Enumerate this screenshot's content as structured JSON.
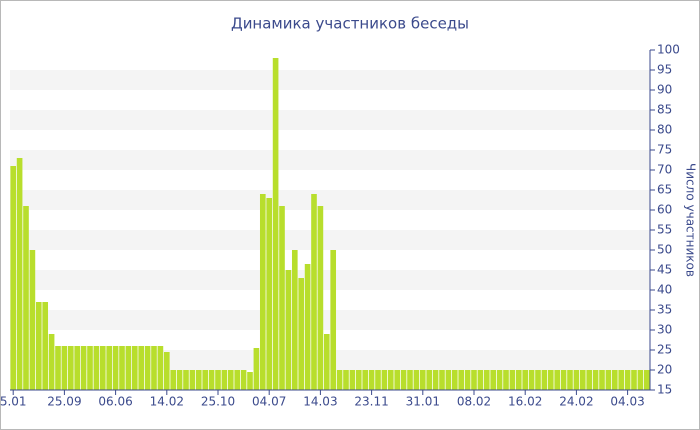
{
  "chart_data": {
    "type": "bar",
    "title": "Динамика участников беседы",
    "y_label": "Число участников",
    "categories": [
      "5.01",
      null,
      null,
      null,
      null,
      null,
      null,
      null,
      "25.09",
      null,
      null,
      null,
      null,
      null,
      null,
      null,
      "06.06",
      null,
      null,
      null,
      null,
      null,
      null,
      null,
      "14.02",
      null,
      null,
      null,
      null,
      null,
      null,
      null,
      "25.10",
      null,
      null,
      null,
      null,
      null,
      null,
      null,
      "04.07",
      null,
      null,
      null,
      null,
      null,
      null,
      null,
      "14.03",
      null,
      null,
      null,
      null,
      null,
      null,
      null,
      "23.11",
      null,
      null,
      null,
      null,
      null,
      null,
      null,
      "31.01",
      null,
      null,
      null,
      null,
      null,
      null,
      null,
      "08.02",
      null,
      null,
      null,
      null,
      null,
      null,
      null,
      "16.02",
      null,
      null,
      null,
      null,
      null,
      null,
      null,
      "24.02",
      null,
      null,
      null,
      null,
      null,
      null,
      null,
      "04.03",
      null,
      null,
      null
    ],
    "values": [
      71,
      73,
      61,
      50,
      37,
      37,
      29,
      26,
      26,
      26,
      26,
      26,
      26,
      26,
      26,
      26,
      26,
      26,
      26,
      26,
      26,
      26,
      26,
      26,
      24.5,
      20,
      20,
      20,
      20,
      20,
      20,
      20,
      20,
      20,
      20,
      20,
      20,
      19.5,
      25.5,
      64,
      63,
      98,
      61,
      45,
      50,
      43,
      46.5,
      64,
      61,
      29,
      50,
      20,
      20,
      20,
      20,
      20,
      20,
      20,
      20,
      20,
      20,
      20,
      20,
      20,
      20,
      20,
      20,
      20,
      20,
      20,
      20,
      20,
      20,
      20,
      20,
      20,
      20,
      20,
      20,
      20,
      20,
      20,
      20,
      20,
      20,
      20,
      20,
      20,
      20,
      20,
      20,
      20,
      20,
      20,
      20,
      20,
      20,
      20,
      20,
      20
    ],
    "color": "#b8de2c",
    "ylim": [
      15,
      100
    ],
    "yticks": [
      15,
      20,
      25,
      30,
      35,
      40,
      45,
      50,
      55,
      60,
      65,
      70,
      75,
      80,
      85,
      90,
      95,
      100
    ],
    "y_axis_side": "right",
    "grid": "bands"
  }
}
